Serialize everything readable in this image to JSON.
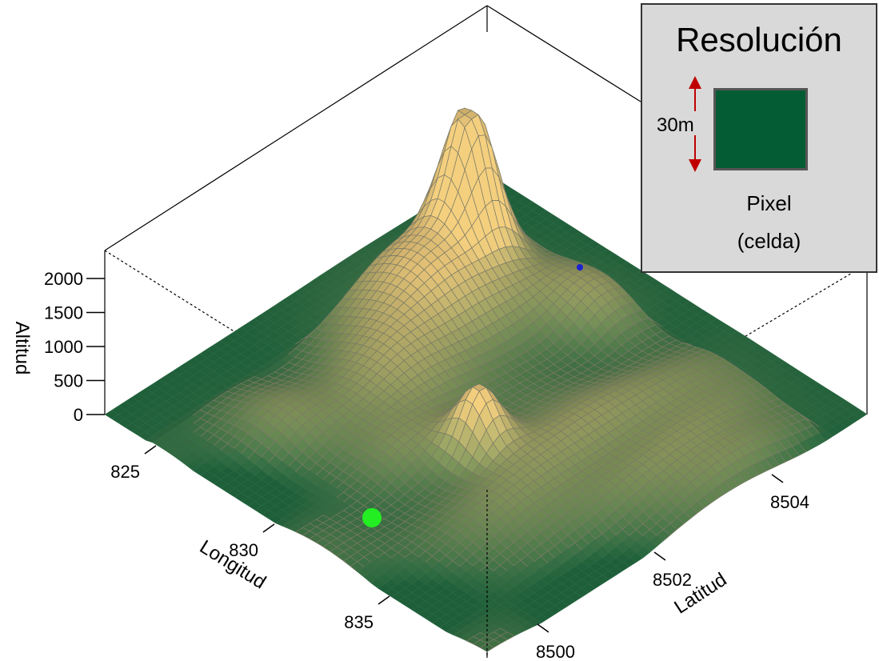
{
  "chart_data": {
    "type": "surface3d",
    "title": "",
    "zlabel": "Altitud",
    "xlabel": "Longitud",
    "ylabel": "Latitud",
    "z_ticks": [
      "0",
      "500",
      "1000",
      "1500",
      "2000"
    ],
    "x_ticks": [
      "825",
      "830",
      "835"
    ],
    "y_ticks": [
      "8500",
      "8502",
      "8504"
    ],
    "zlim": [
      0,
      2300
    ],
    "surface_color_low": "#1e5f3a",
    "surface_color_high": "#d4b46e",
    "mesh_color": "#7a7a66",
    "peak": {
      "longitud": 830,
      "latitud": 8503.5,
      "altitud": 2300
    },
    "markers": [
      {
        "name": "green-point",
        "color": "#22ee22"
      },
      {
        "name": "blue-point",
        "color": "#1a23d0"
      }
    ]
  },
  "legend": {
    "title": "Resolución",
    "size_label": "30m",
    "pixel_label": "Pixel",
    "pixel_sub": "(celda)",
    "swatch_color": "#035c34",
    "arrow_color": "#c00000"
  }
}
